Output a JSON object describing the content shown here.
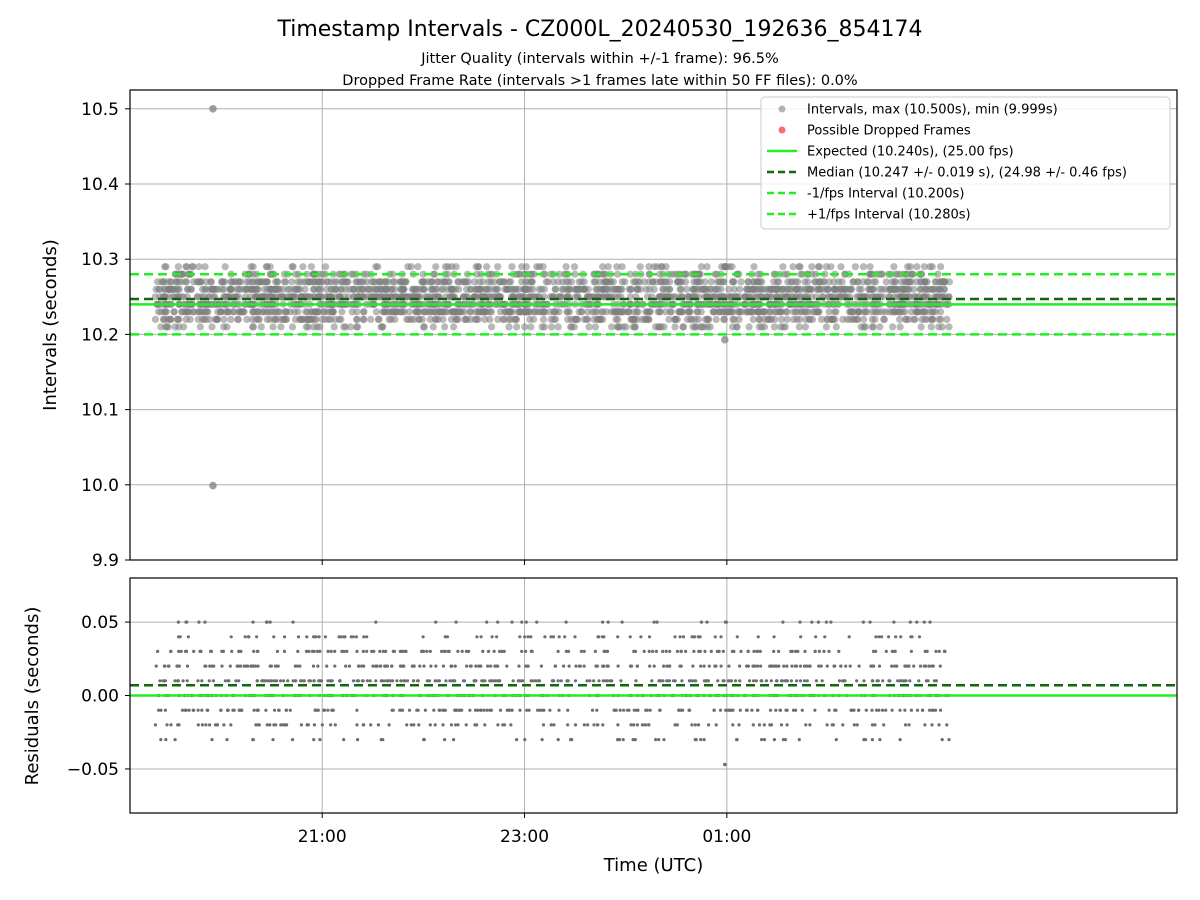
{
  "chart_data": {
    "type": "scatter",
    "title": "Timestamp Intervals - CZ000L_20240530_192636_854174",
    "subtitles": [
      "Jitter Quality (intervals within +/-1 frame): 96.5%",
      "Dropped Frame Rate (intervals >1 frames late within 50 FF files): 0.0%"
    ],
    "xlabel": "Time (UTC)",
    "x_tick_labels": [
      "21:00",
      "23:00",
      "01:00"
    ],
    "grid": true,
    "legend_placement": "top-right",
    "colors": {
      "intervals": "#808080",
      "dropped": "#f06060",
      "expected": "#22ee22",
      "median": "#116611",
      "fps_bounds": "#22ee22"
    },
    "x_range_hours": [
      19.1,
      29.45
    ],
    "x_tick_hours": [
      21,
      23,
      25
    ],
    "data_x_range_hours": [
      19.35,
      27.2
    ],
    "outliers": [
      {
        "time": "19:55",
        "x_hours": 19.92,
        "interval": 10.5
      },
      {
        "time": "19:55",
        "x_hours": 19.92,
        "interval": 9.999
      },
      {
        "time": "01:00",
        "x_hours": 24.98,
        "interval": 10.193
      }
    ],
    "intervals_panel": {
      "ylabel": "Intervals (seconds)",
      "ylim": [
        9.9,
        10.525
      ],
      "y_ticks": [
        9.9,
        10.0,
        10.1,
        10.2,
        10.3,
        10.4,
        10.5
      ],
      "y_tick_labels": [
        "9.9",
        "10.0",
        "10.1",
        "10.2",
        "10.3",
        "10.4",
        "10.5"
      ],
      "typical_values": [
        10.21,
        10.22,
        10.23,
        10.24,
        10.25,
        10.26,
        10.27,
        10.28,
        10.29
      ],
      "series": [
        {
          "name": "Intervals, max (10.500s), min (9.999s)",
          "kind": "scatter"
        },
        {
          "name": "Possible Dropped Frames",
          "kind": "scatter"
        },
        {
          "name": "Expected (10.240s), (25.00 fps)",
          "kind": "hline",
          "y": 10.24
        },
        {
          "name": "Median (10.247 +/- 0.019 s), (24.98 +/- 0.46 fps)",
          "kind": "hline",
          "y": 10.247
        },
        {
          "name": "-1/fps Interval (10.200s)",
          "kind": "hline",
          "y": 10.2
        },
        {
          "name": "+1/fps Interval (10.280s)",
          "kind": "hline",
          "y": 10.28
        }
      ]
    },
    "residuals_panel": {
      "ylabel": "Residuals (seconds)",
      "ylim": [
        -0.08,
        0.08
      ],
      "y_ticks": [
        -0.05,
        0.0,
        0.05
      ],
      "y_tick_labels": [
        "−0.05",
        "0.00",
        "0.05"
      ],
      "expected_residual": 0.0,
      "median_residual": 0.007,
      "typical_values": [
        -0.03,
        -0.02,
        -0.01,
        0.0,
        0.01,
        0.02,
        0.03,
        0.04,
        0.05
      ]
    }
  }
}
